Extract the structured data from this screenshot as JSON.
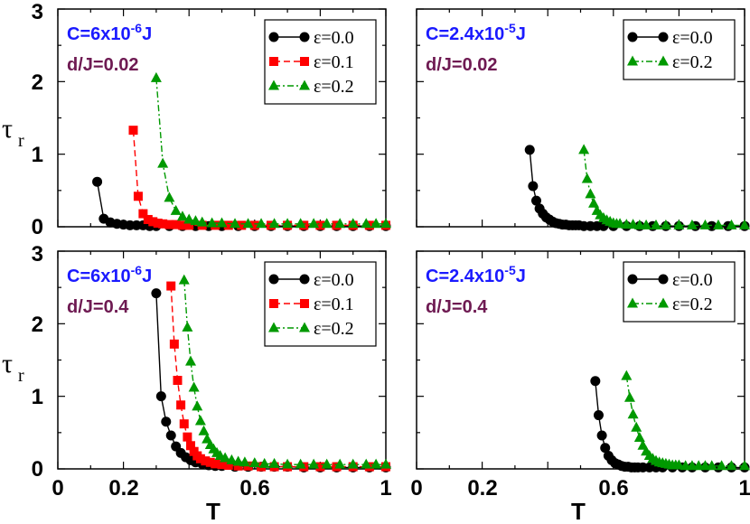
{
  "colors": {
    "black": "#000000",
    "red": "#ff0000",
    "green": "#009900",
    "blue": "#1a1aff",
    "purple": "#6e1a52"
  },
  "axes": {
    "xlabel": "T",
    "ylabel": "τ",
    "ylabel_sub": "r",
    "xticks": [
      "0",
      "0.2",
      "0.6",
      "1"
    ],
    "yticks": [
      "0",
      "1",
      "2",
      "3"
    ]
  },
  "chart_data": [
    {
      "type": "line",
      "panel": "top-left",
      "annotations": {
        "C": "C=6x10",
        "C_exp": "-6",
        "C_unit": "J",
        "d": "d/J=0.02"
      },
      "xlim": [
        0,
        1
      ],
      "ylim": [
        0,
        3
      ],
      "legend": "top-right",
      "series": [
        {
          "name": "ε=0.0",
          "color": "black",
          "marker": "circle",
          "dash": "solid",
          "x": [
            0.12,
            0.14,
            0.16,
            0.18,
            0.2,
            0.22,
            0.24,
            0.26,
            0.28,
            0.3,
            0.34,
            0.38,
            0.42,
            0.46,
            0.5,
            0.55,
            0.6,
            0.65,
            0.7,
            0.75,
            0.8,
            0.85,
            0.9,
            0.95,
            1.0
          ],
          "y": [
            0.62,
            0.11,
            0.06,
            0.04,
            0.03,
            0.02,
            0.02,
            0.02,
            0.01,
            0.01,
            0.01,
            0.01,
            0.01,
            0.01,
            0.01,
            0.01,
            0.01,
            0.01,
            0.01,
            0.01,
            0.01,
            0.01,
            0.01,
            0.01,
            0.01
          ]
        },
        {
          "name": "ε=0.1",
          "color": "red",
          "marker": "square",
          "dash": "dashed",
          "x": [
            0.23,
            0.245,
            0.26,
            0.275,
            0.29,
            0.305,
            0.32,
            0.34,
            0.36,
            0.38,
            0.4,
            0.44,
            0.48,
            0.52,
            0.56,
            0.6,
            0.65,
            0.7,
            0.75,
            0.8,
            0.85,
            0.9,
            0.95,
            1.0
          ],
          "y": [
            1.33,
            0.42,
            0.18,
            0.1,
            0.07,
            0.05,
            0.04,
            0.03,
            0.03,
            0.02,
            0.02,
            0.02,
            0.02,
            0.02,
            0.02,
            0.02,
            0.02,
            0.02,
            0.02,
            0.02,
            0.02,
            0.02,
            0.02,
            0.02
          ]
        },
        {
          "name": "ε=0.2",
          "color": "green",
          "marker": "triangle",
          "dash": "dashdot",
          "x": [
            0.3,
            0.32,
            0.34,
            0.36,
            0.38,
            0.4,
            0.42,
            0.44,
            0.47,
            0.5,
            0.54,
            0.58,
            0.62,
            0.66,
            0.7,
            0.74,
            0.78,
            0.82,
            0.86,
            0.9,
            0.94,
            0.97,
            1.0
          ],
          "y": [
            2.05,
            0.87,
            0.4,
            0.22,
            0.14,
            0.1,
            0.08,
            0.06,
            0.05,
            0.05,
            0.04,
            0.04,
            0.04,
            0.04,
            0.04,
            0.04,
            0.04,
            0.04,
            0.04,
            0.04,
            0.04,
            0.04,
            0.04
          ]
        }
      ]
    },
    {
      "type": "line",
      "panel": "top-right",
      "annotations": {
        "C": "C=2.4x10",
        "C_exp": "-5",
        "C_unit": "J",
        "d": "d/J=0.02"
      },
      "xlim": [
        0,
        1
      ],
      "ylim": [
        0,
        3
      ],
      "legend": "top-right",
      "series": [
        {
          "name": "ε=0.0",
          "color": "black",
          "marker": "circle",
          "dash": "solid",
          "x": [
            0.345,
            0.355,
            0.365,
            0.375,
            0.385,
            0.395,
            0.405,
            0.415,
            0.425,
            0.435,
            0.445,
            0.455,
            0.465,
            0.475,
            0.485,
            0.495,
            0.51,
            0.53,
            0.55,
            0.57,
            0.6,
            0.64,
            0.68,
            0.72,
            0.76,
            0.8,
            0.85,
            0.9,
            0.95,
            1.0
          ],
          "y": [
            1.06,
            0.56,
            0.36,
            0.25,
            0.18,
            0.13,
            0.1,
            0.07,
            0.05,
            0.04,
            0.03,
            0.03,
            0.02,
            0.02,
            0.02,
            0.02,
            0.01,
            0.01,
            0.01,
            0.01,
            0.01,
            0.01,
            0.01,
            0.01,
            0.01,
            0.01,
            0.01,
            0.01,
            0.01,
            0.01
          ]
        },
        {
          "name": "ε=0.2",
          "color": "green",
          "marker": "triangle",
          "dash": "dashdot",
          "x": [
            0.51,
            0.52,
            0.53,
            0.54,
            0.55,
            0.56,
            0.57,
            0.58,
            0.59,
            0.6,
            0.61,
            0.62,
            0.64,
            0.66,
            0.68,
            0.7,
            0.73,
            0.76,
            0.8,
            0.84,
            0.88,
            0.92,
            0.96,
            1.0
          ],
          "y": [
            1.06,
            0.66,
            0.45,
            0.32,
            0.22,
            0.16,
            0.12,
            0.09,
            0.07,
            0.05,
            0.04,
            0.04,
            0.03,
            0.03,
            0.02,
            0.02,
            0.02,
            0.02,
            0.02,
            0.02,
            0.02,
            0.02,
            0.02,
            0.02
          ]
        }
      ]
    },
    {
      "type": "line",
      "panel": "bottom-left",
      "annotations": {
        "C": "C=6x10",
        "C_exp": "-6",
        "C_unit": "J",
        "d": "d/J=0.4"
      },
      "xlim": [
        0,
        1
      ],
      "ylim": [
        0,
        3
      ],
      "legend": "top-right",
      "series": [
        {
          "name": "ε=0.0",
          "color": "black",
          "marker": "circle",
          "dash": "solid",
          "x": [
            0.3,
            0.315,
            0.33,
            0.345,
            0.36,
            0.375,
            0.39,
            0.405,
            0.42,
            0.44,
            0.46,
            0.48,
            0.5,
            0.54,
            0.58,
            0.62,
            0.66,
            0.7,
            0.75,
            0.8,
            0.85,
            0.9,
            0.95,
            1.0
          ],
          "y": [
            2.42,
            1.0,
            0.65,
            0.46,
            0.31,
            0.22,
            0.16,
            0.12,
            0.09,
            0.07,
            0.05,
            0.04,
            0.04,
            0.03,
            0.03,
            0.03,
            0.03,
            0.03,
            0.02,
            0.02,
            0.02,
            0.02,
            0.02,
            0.02
          ]
        },
        {
          "name": "ε=0.1",
          "color": "red",
          "marker": "square",
          "dash": "dashed",
          "x": [
            0.345,
            0.355,
            0.365,
            0.375,
            0.385,
            0.395,
            0.405,
            0.415,
            0.425,
            0.435,
            0.45,
            0.465,
            0.48,
            0.5,
            0.52,
            0.55,
            0.58,
            0.62,
            0.66,
            0.7,
            0.75,
            0.8,
            0.85,
            0.9,
            0.95,
            1.0
          ],
          "y": [
            2.52,
            1.72,
            1.22,
            0.88,
            0.62,
            0.44,
            0.32,
            0.24,
            0.18,
            0.14,
            0.11,
            0.09,
            0.07,
            0.06,
            0.05,
            0.04,
            0.04,
            0.03,
            0.03,
            0.03,
            0.03,
            0.03,
            0.03,
            0.03,
            0.03,
            0.03
          ]
        },
        {
          "name": "ε=0.2",
          "color": "green",
          "marker": "triangle",
          "dash": "dashdot",
          "x": [
            0.385,
            0.395,
            0.405,
            0.415,
            0.425,
            0.435,
            0.445,
            0.455,
            0.465,
            0.475,
            0.485,
            0.495,
            0.51,
            0.53,
            0.55,
            0.57,
            0.6,
            0.63,
            0.66,
            0.7,
            0.74,
            0.78,
            0.82,
            0.86,
            0.9,
            0.94,
            0.97,
            1.0
          ],
          "y": [
            2.6,
            1.95,
            1.48,
            1.12,
            0.86,
            0.66,
            0.52,
            0.41,
            0.33,
            0.27,
            0.22,
            0.18,
            0.15,
            0.12,
            0.1,
            0.09,
            0.08,
            0.07,
            0.07,
            0.06,
            0.06,
            0.06,
            0.06,
            0.06,
            0.06,
            0.06,
            0.06,
            0.06
          ]
        }
      ]
    },
    {
      "type": "line",
      "panel": "bottom-right",
      "annotations": {
        "C": "C=2.4x10",
        "C_exp": "-5",
        "C_unit": "J",
        "d": "d/J=0.4"
      },
      "xlim": [
        0,
        1
      ],
      "ylim": [
        0,
        3
      ],
      "legend": "top-right",
      "series": [
        {
          "name": "ε=0.0",
          "color": "black",
          "marker": "circle",
          "dash": "solid",
          "x": [
            0.545,
            0.555,
            0.565,
            0.575,
            0.585,
            0.595,
            0.605,
            0.615,
            0.625,
            0.635,
            0.645,
            0.655,
            0.665,
            0.675,
            0.69,
            0.71,
            0.73,
            0.75,
            0.78,
            0.81,
            0.84,
            0.88,
            0.92,
            0.96,
            1.0
          ],
          "y": [
            1.21,
            0.74,
            0.46,
            0.29,
            0.18,
            0.12,
            0.08,
            0.06,
            0.04,
            0.03,
            0.03,
            0.02,
            0.02,
            0.02,
            0.02,
            0.02,
            0.02,
            0.02,
            0.02,
            0.02,
            0.02,
            0.02,
            0.02,
            0.02,
            0.02
          ]
        },
        {
          "name": "ε=0.2",
          "color": "green",
          "marker": "triangle",
          "dash": "dashdot",
          "x": [
            0.64,
            0.65,
            0.66,
            0.67,
            0.68,
            0.69,
            0.7,
            0.71,
            0.72,
            0.73,
            0.74,
            0.75,
            0.76,
            0.77,
            0.78,
            0.79,
            0.8,
            0.82,
            0.84,
            0.86,
            0.88,
            0.9,
            0.93,
            0.96,
            1.0
          ],
          "y": [
            1.28,
            0.98,
            0.75,
            0.57,
            0.43,
            0.32,
            0.24,
            0.18,
            0.14,
            0.11,
            0.09,
            0.08,
            0.07,
            0.06,
            0.05,
            0.05,
            0.05,
            0.04,
            0.04,
            0.04,
            0.04,
            0.04,
            0.04,
            0.04,
            0.04
          ]
        }
      ]
    }
  ]
}
